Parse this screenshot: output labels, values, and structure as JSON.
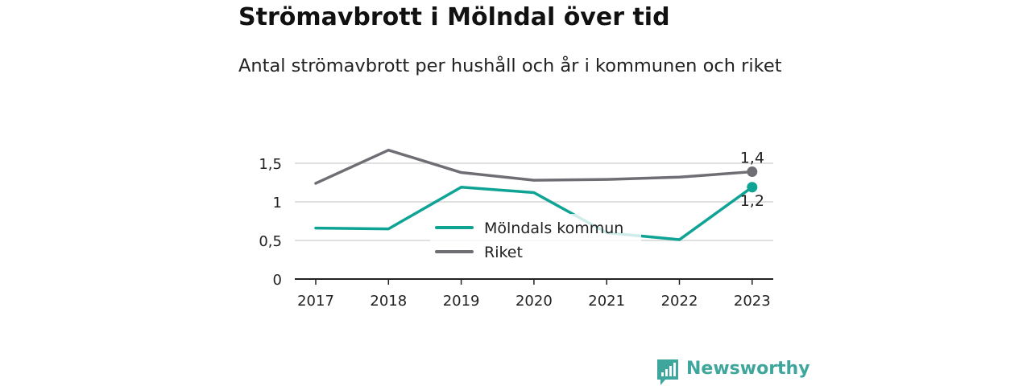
{
  "title": "Strömavbrott i Mölndal över tid",
  "subtitle": "Antal strömavbrott per hushåll och år i kommunen och riket",
  "brand": {
    "name": "Newsworthy",
    "icon": "newsworthy-logo-icon"
  },
  "colors": {
    "kommun": "#0ea394",
    "riket": "#6f6e75",
    "grid": "#d6d6d6",
    "axis": "#222222",
    "brand": "#3ea69c"
  },
  "chart_data": {
    "type": "line",
    "x": [
      "2017",
      "2018",
      "2019",
      "2020",
      "2021",
      "2022",
      "2023"
    ],
    "y_ticks": [
      "0",
      "0,5",
      "1",
      "1,5"
    ],
    "ylim": [
      0,
      1.5
    ],
    "grid": true,
    "legend_position": "center",
    "series": [
      {
        "name": "Mölndals kommun",
        "key": "kommun",
        "values": [
          0.66,
          0.65,
          1.19,
          1.12,
          0.6,
          0.51,
          1.19
        ],
        "end_label": "1,2"
      },
      {
        "name": "Riket",
        "key": "riket",
        "values": [
          1.24,
          1.67,
          1.38,
          1.28,
          1.29,
          1.32,
          1.39
        ],
        "end_label": "1,4"
      }
    ]
  }
}
